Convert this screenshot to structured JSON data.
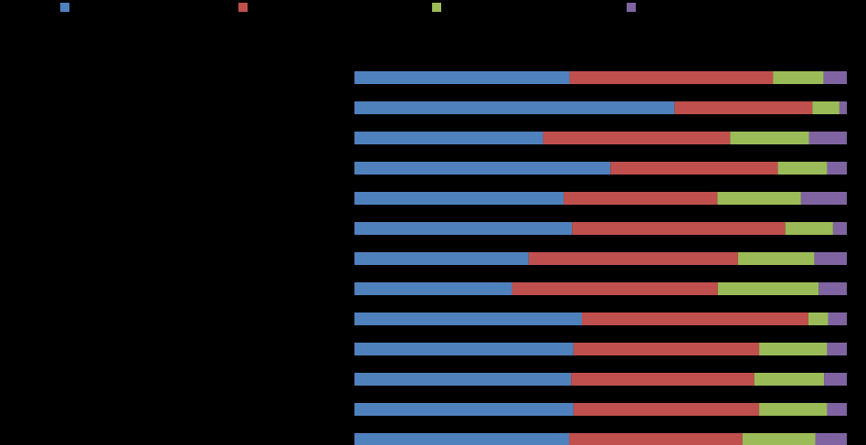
{
  "chart_data": {
    "type": "bar",
    "orientation": "horizontal",
    "stacked": true,
    "normalized": true,
    "title": "",
    "xlabel": "",
    "ylabel": "",
    "xlim": [
      0,
      1
    ],
    "grid": true,
    "legend_position": "top",
    "categories": [
      "",
      "",
      "",
      "",
      "",
      "",
      "",
      "",
      "",
      "",
      "",
      "",
      ""
    ],
    "series": [
      {
        "color": "#4f81bd",
        "values": [
          0.437,
          0.65,
          0.383,
          0.52,
          0.425,
          0.442,
          0.354,
          0.32,
          0.462,
          0.445,
          0.44,
          0.445,
          0.436
        ]
      },
      {
        "color": "#c0504d",
        "values": [
          0.413,
          0.28,
          0.38,
          0.34,
          0.312,
          0.433,
          0.425,
          0.418,
          0.46,
          0.377,
          0.372,
          0.377,
          0.352
        ]
      },
      {
        "color": "#9bbb59",
        "values": [
          0.103,
          0.055,
          0.16,
          0.1,
          0.17,
          0.097,
          0.155,
          0.205,
          0.04,
          0.138,
          0.142,
          0.138,
          0.148
        ]
      },
      {
        "color": "#8064a2",
        "values": [
          0.047,
          0.015,
          0.077,
          0.04,
          0.093,
          0.028,
          0.066,
          0.057,
          0.038,
          0.04,
          0.046,
          0.04,
          0.064
        ]
      }
    ]
  }
}
